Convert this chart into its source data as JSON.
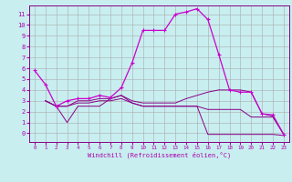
{
  "background_color": "#c8eef0",
  "grid_color": "#aaaaaa",
  "line1_color": "#cc00cc",
  "line_dark_color": "#880088",
  "xlabel": "Windchill (Refroidissement éolien,°C)",
  "xlim": [
    -0.5,
    23.5
  ],
  "ylim": [
    -0.8,
    11.8
  ],
  "xticks": [
    0,
    1,
    2,
    3,
    4,
    5,
    6,
    7,
    8,
    9,
    10,
    11,
    12,
    13,
    14,
    15,
    16,
    17,
    18,
    19,
    20,
    21,
    22,
    23
  ],
  "yticks": [
    0,
    1,
    2,
    3,
    4,
    5,
    6,
    7,
    8,
    9,
    10,
    11
  ],
  "line1_x": [
    0,
    1,
    2,
    3,
    4,
    5,
    6,
    7,
    8,
    9,
    10,
    11,
    12,
    13,
    14,
    15,
    16,
    17,
    18,
    19,
    20,
    21,
    22,
    23
  ],
  "line1_y": [
    5.8,
    4.5,
    2.5,
    3.0,
    3.2,
    3.2,
    3.5,
    3.3,
    4.2,
    6.5,
    9.5,
    9.5,
    9.5,
    11.0,
    11.2,
    11.5,
    10.5,
    7.3,
    4.0,
    3.8,
    3.8,
    1.8,
    1.7,
    -0.1
  ],
  "line2_x": [
    1,
    2,
    3,
    4,
    5,
    6,
    7,
    8,
    9,
    10,
    11,
    12,
    13,
    14,
    15,
    16,
    17,
    18,
    19,
    20,
    21,
    22,
    23
  ],
  "line2_y": [
    3.0,
    2.5,
    1.0,
    2.5,
    2.5,
    2.5,
    3.2,
    3.5,
    2.8,
    2.5,
    2.5,
    2.5,
    2.5,
    2.5,
    2.5,
    -0.1,
    -0.1,
    -0.1,
    -0.1,
    -0.1,
    -0.1,
    -0.1,
    -0.2
  ],
  "line3_x": [
    1,
    2,
    3,
    4,
    5,
    6,
    7,
    8,
    9,
    10,
    11,
    12,
    13,
    14,
    15,
    16,
    17,
    18,
    19,
    20,
    21,
    22,
    23
  ],
  "line3_y": [
    3.0,
    2.5,
    2.5,
    3.0,
    3.0,
    3.2,
    3.2,
    3.5,
    3.0,
    2.8,
    2.8,
    2.8,
    2.8,
    3.2,
    3.5,
    3.8,
    4.0,
    4.0,
    4.0,
    3.8,
    1.8,
    1.6,
    -0.1
  ],
  "line4_x": [
    1,
    2,
    3,
    4,
    5,
    6,
    7,
    8,
    9,
    10,
    11,
    12,
    13,
    14,
    15,
    16,
    17,
    18,
    19,
    20,
    21,
    22,
    23
  ],
  "line4_y": [
    3.0,
    2.5,
    2.5,
    2.8,
    2.8,
    3.0,
    3.0,
    3.2,
    2.8,
    2.5,
    2.5,
    2.5,
    2.5,
    2.5,
    2.5,
    2.2,
    2.2,
    2.2,
    2.2,
    1.5,
    1.5,
    1.5,
    -0.1
  ]
}
